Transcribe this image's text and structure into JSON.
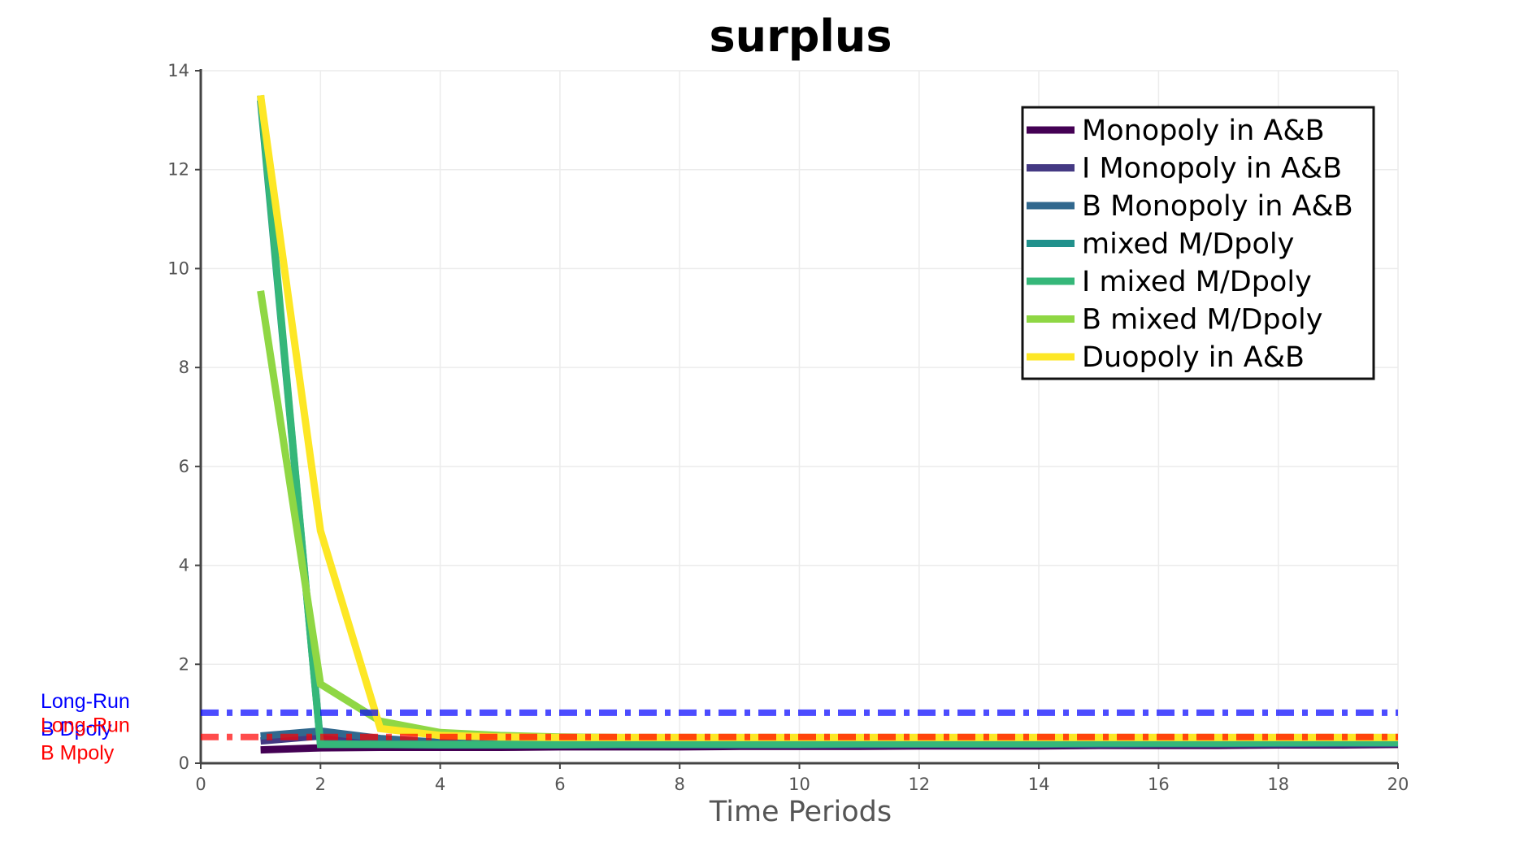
{
  "chart_data": {
    "type": "line",
    "title": "surplus",
    "xlabel": "Time Periods",
    "ylabel": "",
    "xlim": [
      0,
      20
    ],
    "ylim": [
      0,
      14
    ],
    "xticks": [
      0,
      2,
      4,
      6,
      8,
      10,
      12,
      14,
      16,
      18,
      20
    ],
    "yticks": [
      0,
      2,
      4,
      6,
      8,
      10,
      12,
      14
    ],
    "grid": true,
    "legend_position": "top-right",
    "x": [
      1,
      2,
      3,
      4,
      5,
      6,
      7,
      8,
      9,
      10,
      11,
      12,
      13,
      14,
      15,
      16,
      17,
      18,
      19,
      20
    ],
    "series": [
      {
        "name": "Monopoly in A&B",
        "color": "#440154",
        "values": [
          0.27,
          0.31,
          0.32,
          0.32,
          0.32,
          0.33,
          0.33,
          0.33,
          0.34,
          0.34,
          0.34,
          0.35,
          0.35,
          0.35,
          0.36,
          0.36,
          0.36,
          0.37,
          0.37,
          0.38
        ]
      },
      {
        "name": "I Monopoly in A&B",
        "color": "#443983",
        "values": [
          0.45,
          0.55,
          0.45,
          0.4,
          0.38,
          0.37,
          0.37,
          0.37,
          0.37,
          0.37,
          0.37,
          0.38,
          0.38,
          0.38,
          0.38,
          0.39,
          0.39,
          0.39,
          0.39,
          0.4
        ]
      },
      {
        "name": "B Monopoly in A&B",
        "color": "#31688e",
        "values": [
          0.55,
          0.65,
          0.5,
          0.42,
          0.4,
          0.39,
          0.39,
          0.39,
          0.39,
          0.39,
          0.39,
          0.39,
          0.39,
          0.4,
          0.4,
          0.4,
          0.4,
          0.4,
          0.41,
          0.41
        ]
      },
      {
        "name": "mixed M/Dpoly",
        "color": "#21918c",
        "values": [
          13.4,
          0.4,
          0.38,
          0.37,
          0.37,
          0.37,
          0.38,
          0.38,
          0.38,
          0.38,
          0.39,
          0.39,
          0.39,
          0.39,
          0.4,
          0.4,
          0.4,
          0.41,
          0.41,
          0.41
        ]
      },
      {
        "name": "I mixed M/Dpoly",
        "color": "#35b779",
        "values": [
          13.5,
          0.38,
          0.38,
          0.38,
          0.38,
          0.38,
          0.39,
          0.39,
          0.39,
          0.39,
          0.4,
          0.4,
          0.4,
          0.4,
          0.41,
          0.41,
          0.41,
          0.42,
          0.42,
          0.42
        ]
      },
      {
        "name": "B mixed M/Dpoly",
        "color": "#8fd744",
        "values": [
          9.55,
          1.6,
          0.85,
          0.62,
          0.56,
          0.53,
          0.52,
          0.52,
          0.52,
          0.52,
          0.52,
          0.52,
          0.52,
          0.52,
          0.52,
          0.52,
          0.52,
          0.52,
          0.52,
          0.52
        ]
      },
      {
        "name": "Duopoly in A&B",
        "color": "#fde725",
        "values": [
          13.5,
          4.7,
          0.7,
          0.56,
          0.53,
          0.52,
          0.52,
          0.52,
          0.52,
          0.52,
          0.52,
          0.52,
          0.52,
          0.52,
          0.52,
          0.52,
          0.52,
          0.52,
          0.52,
          0.52
        ]
      }
    ],
    "reference_lines": [
      {
        "label_line1": "Long-Run",
        "label_line2": "B Dpoly",
        "value": 1.02,
        "color": "#0000ff"
      },
      {
        "label_line1": "Long-Run",
        "label_line2": "B Mpoly",
        "value": 0.53,
        "color": "#ff0000"
      }
    ]
  }
}
